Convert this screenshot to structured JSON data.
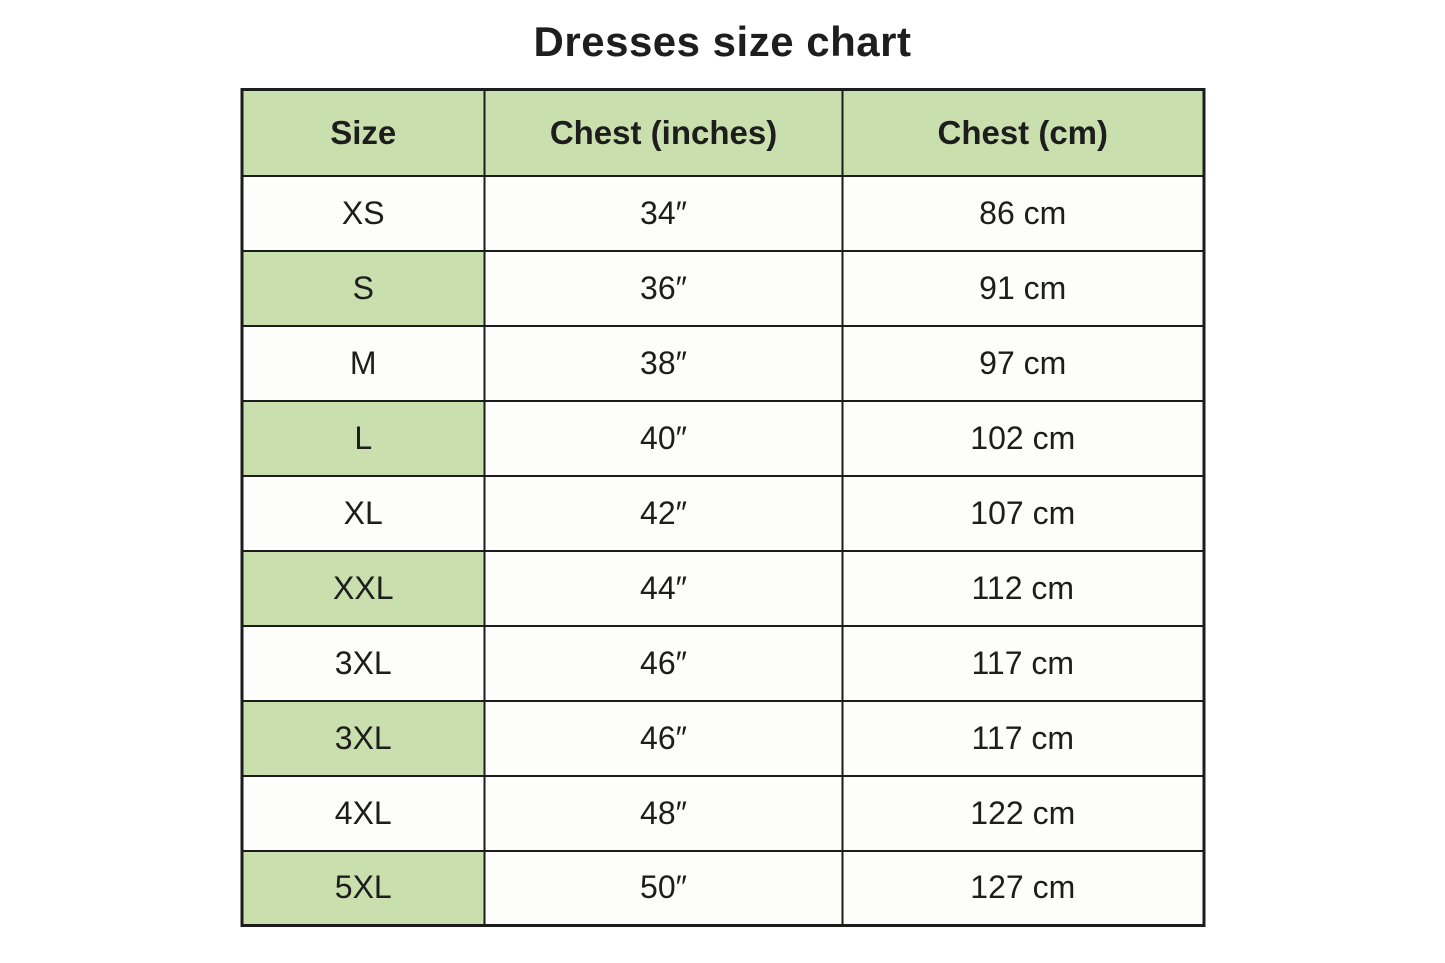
{
  "title": "Dresses size chart",
  "colors": {
    "page_bg": "#ffffff",
    "header_bg": "#c9dfad",
    "highlight_cell_bg": "#c9dfad",
    "border": "#1c1c1c",
    "text": "#1d1d1d"
  },
  "table": {
    "columns": [
      "Size",
      "Chest (inches)",
      "Chest (cm)"
    ],
    "rows": [
      {
        "size": "XS",
        "inches": "34″",
        "cm": "86 cm",
        "highlight": false
      },
      {
        "size": "S",
        "inches": "36″",
        "cm": "91 cm",
        "highlight": true
      },
      {
        "size": "M",
        "inches": "38″",
        "cm": "97 cm",
        "highlight": false
      },
      {
        "size": "L",
        "inches": "40″",
        "cm": "102 cm",
        "highlight": true
      },
      {
        "size": "XL",
        "inches": "42″",
        "cm": "107 cm",
        "highlight": false
      },
      {
        "size": "XXL",
        "inches": "44″",
        "cm": "112 cm",
        "highlight": true
      },
      {
        "size": "3XL",
        "inches": "46″",
        "cm": "117 cm",
        "highlight": false
      },
      {
        "size": "3XL",
        "inches": "46″",
        "cm": "117 cm",
        "highlight": true
      },
      {
        "size": "4XL",
        "inches": "48″",
        "cm": "122 cm",
        "highlight": false
      },
      {
        "size": "5XL",
        "inches": "50″",
        "cm": "127 cm",
        "highlight": true
      }
    ]
  },
  "chart_data": {
    "type": "table",
    "title": "Dresses size chart",
    "columns": [
      "Size",
      "Chest (inches)",
      "Chest (cm)"
    ],
    "rows": [
      [
        "XS",
        "34″",
        "86 cm"
      ],
      [
        "S",
        "36″",
        "91 cm"
      ],
      [
        "M",
        "38″",
        "97 cm"
      ],
      [
        "L",
        "40″",
        "102 cm"
      ],
      [
        "XL",
        "42″",
        "107 cm"
      ],
      [
        "XXL",
        "44″",
        "112 cm"
      ],
      [
        "3XL",
        "46″",
        "117 cm"
      ],
      [
        "3XL",
        "46″",
        "117 cm"
      ],
      [
        "4XL",
        "48″",
        "122 cm"
      ],
      [
        "5XL",
        "50″",
        "127 cm"
      ]
    ],
    "notes": "Size column cells on alternating rows (S, L, XXL, second 3XL, 5XL) are shaded green like the header."
  }
}
